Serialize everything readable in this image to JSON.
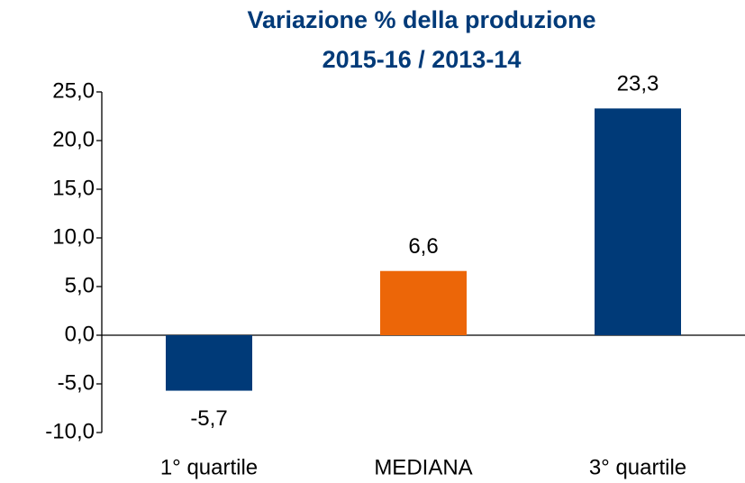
{
  "chart_data": {
    "type": "bar",
    "title": "Variazione % della produzione",
    "subtitle": "2015-16 / 2013-14",
    "categories": [
      "1° quartile",
      "MEDIANA",
      "3° quartile"
    ],
    "values": [
      -5.7,
      6.6,
      23.3
    ],
    "value_labels": [
      "-5,7",
      "6,6",
      "23,3"
    ],
    "colors": [
      "#003a78",
      "#ec6608",
      "#003a78"
    ],
    "ylim": [
      -10,
      25
    ],
    "yticks": [
      {
        "value": -10,
        "label": "-10,0"
      },
      {
        "value": -5,
        "label": "-5,0"
      },
      {
        "value": 0,
        "label": "0,0"
      },
      {
        "value": 5,
        "label": "5,0"
      },
      {
        "value": 10,
        "label": "10,0"
      },
      {
        "value": 15,
        "label": "15,0"
      },
      {
        "value": 20,
        "label": "20,0"
      },
      {
        "value": 25,
        "label": "25,0"
      }
    ],
    "grid": false
  }
}
